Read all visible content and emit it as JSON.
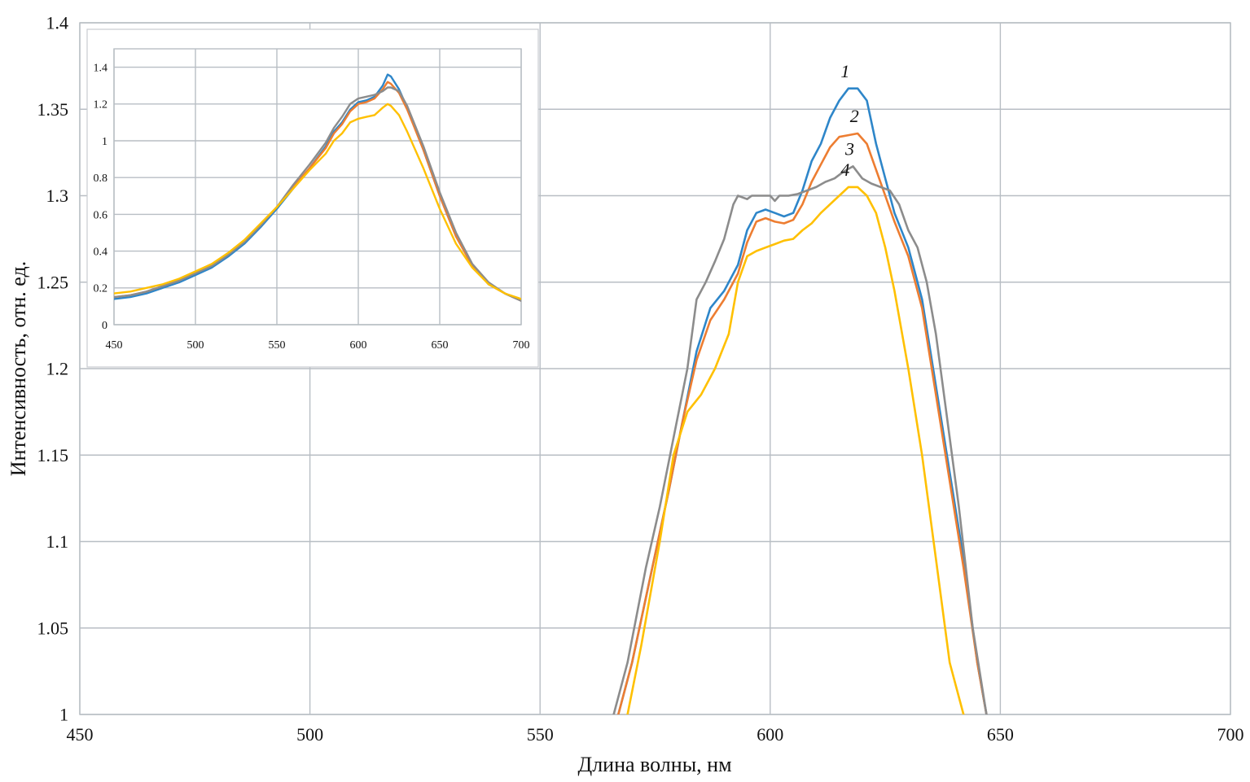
{
  "colors": {
    "blue": "#2e86c9",
    "orange": "#ed7d31",
    "gray": "#8c8c8c",
    "yellow": "#ffc000",
    "grid": "#b8bec4"
  },
  "chart_data": [
    {
      "id": "main",
      "type": "line",
      "xlabel": "Длина волны, нм",
      "ylabel": "Интенсивность, отн. ед.",
      "xlim": [
        450,
        700
      ],
      "ylim": [
        1,
        1.4
      ],
      "xticks": [
        450,
        500,
        550,
        600,
        650,
        700
      ],
      "yticks": [
        1,
        1.05,
        1.1,
        1.15,
        1.2,
        1.25,
        1.3,
        1.35,
        1.4
      ],
      "xtick_labels": [
        "450",
        "500",
        "550",
        "600",
        "650",
        "700"
      ],
      "ytick_labels": [
        "1",
        "1.05",
        "1.1",
        "1.15",
        "1.2",
        "1.25",
        "1.3",
        "1.35",
        "1.4"
      ],
      "grid": true,
      "series": [
        {
          "label": "1",
          "color": "#2e86c9",
          "x": [
            567,
            570,
            574,
            578,
            581,
            584,
            587,
            590,
            593,
            595,
            597,
            599,
            601,
            603,
            605,
            607,
            609,
            611,
            613,
            615,
            617,
            619,
            621,
            623,
            625,
            627,
            630,
            633,
            636,
            639,
            642,
            645,
            647
          ],
          "y": [
            1.0,
            1.03,
            1.08,
            1.13,
            1.17,
            1.21,
            1.235,
            1.245,
            1.26,
            1.28,
            1.29,
            1.292,
            1.29,
            1.288,
            1.29,
            1.303,
            1.32,
            1.33,
            1.345,
            1.355,
            1.362,
            1.362,
            1.355,
            1.33,
            1.31,
            1.29,
            1.27,
            1.24,
            1.19,
            1.14,
            1.09,
            1.03,
            1.0
          ]
        },
        {
          "label": "2",
          "color": "#ed7d31",
          "x": [
            567,
            570,
            574,
            578,
            581,
            584,
            587,
            590,
            593,
            595,
            597,
            599,
            601,
            603,
            605,
            607,
            609,
            611,
            613,
            615,
            617,
            619,
            621,
            623,
            625,
            627,
            630,
            633,
            636,
            639,
            642,
            645,
            647
          ],
          "y": [
            1.0,
            1.03,
            1.08,
            1.13,
            1.17,
            1.205,
            1.228,
            1.24,
            1.255,
            1.273,
            1.285,
            1.287,
            1.285,
            1.284,
            1.286,
            1.295,
            1.308,
            1.318,
            1.328,
            1.334,
            1.335,
            1.336,
            1.33,
            1.315,
            1.3,
            1.285,
            1.265,
            1.235,
            1.185,
            1.135,
            1.085,
            1.03,
            1.0
          ]
        },
        {
          "label": "3",
          "color": "#8c8c8c",
          "x": [
            566,
            569,
            573,
            576,
            579,
            582,
            584,
            586,
            588,
            590,
            592,
            593,
            595,
            596,
            598,
            600,
            601,
            602,
            604,
            606,
            608,
            610,
            612,
            614,
            616,
            618,
            620,
            622,
            624,
            626,
            628,
            630,
            632,
            634,
            636,
            638,
            641,
            644,
            647
          ],
          "y": [
            1.0,
            1.03,
            1.085,
            1.12,
            1.16,
            1.2,
            1.24,
            1.25,
            1.262,
            1.275,
            1.295,
            1.3,
            1.298,
            1.3,
            1.3,
            1.3,
            1.297,
            1.3,
            1.3,
            1.301,
            1.303,
            1.305,
            1.308,
            1.31,
            1.314,
            1.317,
            1.31,
            1.307,
            1.305,
            1.303,
            1.295,
            1.28,
            1.27,
            1.25,
            1.22,
            1.18,
            1.12,
            1.05,
            1.0
          ]
        },
        {
          "label": "4",
          "color": "#ffc000",
          "x": [
            569,
            572,
            576,
            579,
            582,
            585,
            588,
            591,
            593,
            595,
            597,
            599,
            601,
            603,
            605,
            607,
            609,
            611,
            613,
            615,
            617,
            619,
            621,
            623,
            625,
            627,
            630,
            633,
            636,
            639,
            642,
            643
          ],
          "y": [
            1.0,
            1.04,
            1.1,
            1.15,
            1.175,
            1.185,
            1.2,
            1.22,
            1.25,
            1.265,
            1.268,
            1.27,
            1.272,
            1.274,
            1.275,
            1.28,
            1.284,
            1.29,
            1.295,
            1.3,
            1.305,
            1.305,
            1.3,
            1.29,
            1.27,
            1.245,
            1.2,
            1.15,
            1.09,
            1.03,
            1.0,
            0.99
          ]
        }
      ]
    },
    {
      "id": "inset",
      "type": "line",
      "xlim": [
        450,
        700
      ],
      "ylim": [
        0,
        1.5
      ],
      "xticks": [
        450,
        500,
        550,
        600,
        650,
        700
      ],
      "yticks": [
        0,
        0.2,
        0.4,
        0.6,
        0.8,
        1,
        1.2,
        1.4
      ],
      "xtick_labels": [
        "450",
        "500",
        "550",
        "600",
        "650",
        "700"
      ],
      "ytick_labels": [
        "0",
        "0.2",
        "0.4",
        "0.6",
        "0.8",
        "1",
        "1.2",
        "1.4"
      ],
      "grid": true,
      "series": [
        {
          "color": "#2e86c9",
          "x": [
            450,
            460,
            470,
            480,
            490,
            500,
            510,
            520,
            530,
            540,
            550,
            560,
            570,
            580,
            585,
            590,
            595,
            600,
            605,
            610,
            615,
            618,
            620,
            625,
            630,
            640,
            650,
            660,
            670,
            680,
            690,
            700
          ],
          "y": [
            0.14,
            0.15,
            0.17,
            0.2,
            0.23,
            0.27,
            0.31,
            0.37,
            0.44,
            0.53,
            0.63,
            0.74,
            0.85,
            0.97,
            1.05,
            1.1,
            1.17,
            1.21,
            1.22,
            1.24,
            1.3,
            1.36,
            1.35,
            1.28,
            1.18,
            0.95,
            0.7,
            0.48,
            0.32,
            0.22,
            0.17,
            0.13
          ]
        },
        {
          "color": "#ed7d31",
          "x": [
            450,
            460,
            470,
            480,
            490,
            500,
            510,
            520,
            530,
            540,
            550,
            560,
            570,
            580,
            585,
            590,
            595,
            600,
            605,
            610,
            615,
            618,
            620,
            625,
            630,
            640,
            650,
            660,
            670,
            680,
            690,
            700
          ],
          "y": [
            0.15,
            0.16,
            0.18,
            0.21,
            0.24,
            0.28,
            0.32,
            0.38,
            0.45,
            0.54,
            0.64,
            0.75,
            0.85,
            0.96,
            1.04,
            1.09,
            1.16,
            1.2,
            1.21,
            1.23,
            1.28,
            1.32,
            1.31,
            1.26,
            1.17,
            0.95,
            0.7,
            0.48,
            0.32,
            0.22,
            0.17,
            0.13
          ]
        },
        {
          "color": "#8c8c8c",
          "x": [
            450,
            460,
            470,
            480,
            490,
            500,
            510,
            520,
            530,
            540,
            550,
            560,
            570,
            580,
            585,
            590,
            595,
            600,
            605,
            610,
            615,
            618,
            620,
            625,
            630,
            640,
            650,
            660,
            670,
            680,
            690,
            700
          ],
          "y": [
            0.15,
            0.16,
            0.18,
            0.21,
            0.24,
            0.28,
            0.32,
            0.38,
            0.45,
            0.54,
            0.64,
            0.76,
            0.87,
            0.99,
            1.07,
            1.13,
            1.2,
            1.23,
            1.24,
            1.25,
            1.27,
            1.29,
            1.29,
            1.27,
            1.19,
            0.97,
            0.72,
            0.5,
            0.33,
            0.23,
            0.17,
            0.13
          ]
        },
        {
          "color": "#ffc000",
          "x": [
            450,
            460,
            470,
            480,
            490,
            500,
            510,
            520,
            530,
            540,
            550,
            560,
            570,
            580,
            585,
            590,
            595,
            600,
            605,
            610,
            615,
            618,
            620,
            625,
            630,
            640,
            650,
            660,
            670,
            680,
            690,
            700
          ],
          "y": [
            0.17,
            0.18,
            0.2,
            0.22,
            0.25,
            0.29,
            0.33,
            0.39,
            0.46,
            0.55,
            0.64,
            0.74,
            0.84,
            0.93,
            1.0,
            1.04,
            1.1,
            1.12,
            1.13,
            1.14,
            1.18,
            1.2,
            1.19,
            1.14,
            1.05,
            0.85,
            0.63,
            0.44,
            0.31,
            0.22,
            0.17,
            0.14
          ]
        }
      ]
    }
  ]
}
